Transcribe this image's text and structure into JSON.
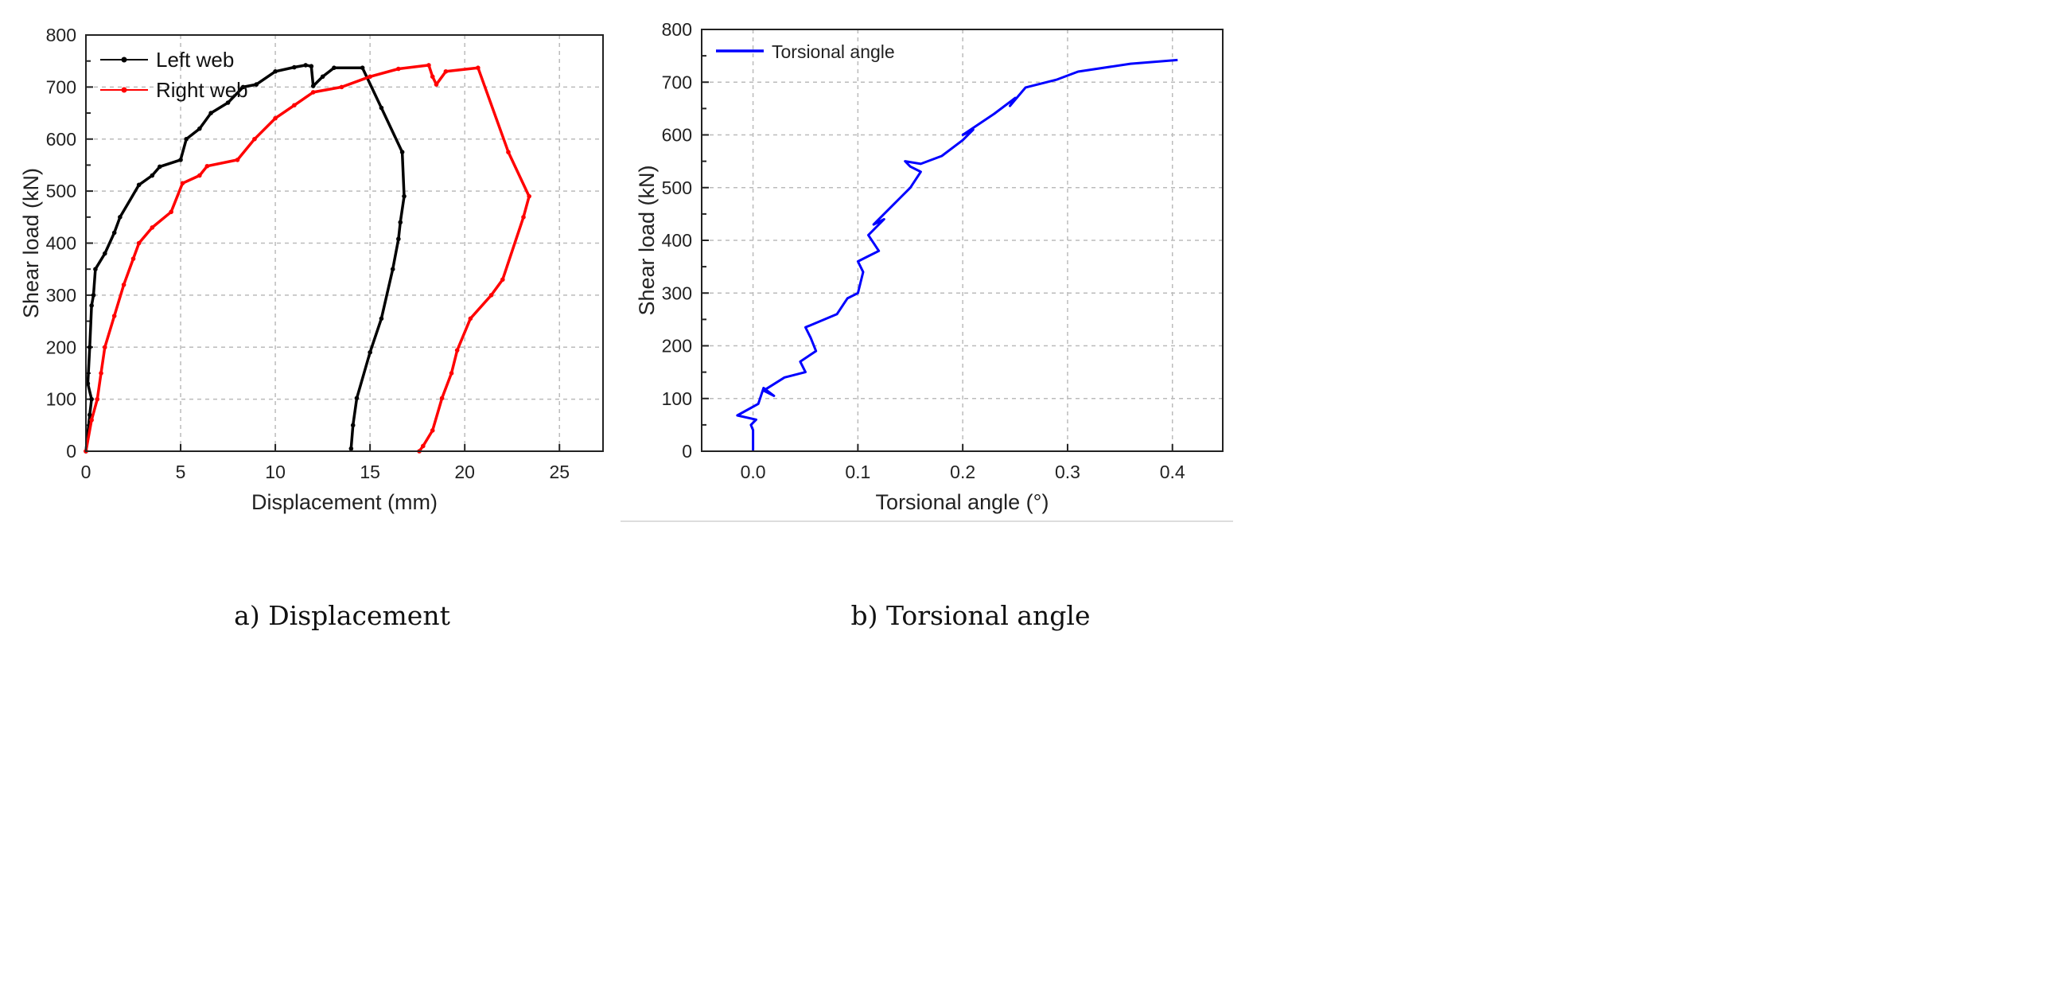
{
  "chart_data": [
    {
      "type": "line",
      "caption": "a) Displacement",
      "xlabel": "Displacement (mm)",
      "ylabel": "Shear load (kN)",
      "xlim": [
        0,
        27.3
      ],
      "ylim": [
        0,
        800
      ],
      "xticks": [
        "0",
        "5",
        "10",
        "15",
        "20",
        "25"
      ],
      "yticks": [
        "0",
        "100",
        "200",
        "300",
        "400",
        "500",
        "600",
        "700",
        "800"
      ],
      "grid": true,
      "legend_position": "top-left",
      "series": [
        {
          "name": "Left web",
          "color": "#000000",
          "x": [
            0,
            0.2,
            0.3,
            0.1,
            0.2,
            0.3,
            0.4,
            0.5,
            1,
            1.5,
            1.8,
            2.8,
            3.5,
            3.9,
            5,
            5.3,
            6,
            6.6,
            7.5,
            8.3,
            9,
            10,
            11,
            11.6,
            11.9,
            12,
            12.5,
            13.1,
            14.6,
            15.6,
            16.7,
            16.8,
            16.6,
            16.5,
            16.2,
            15.6,
            15,
            14.3,
            14.1,
            14
          ],
          "y": [
            0,
            70,
            100,
            130,
            200,
            280,
            300,
            350,
            380,
            420,
            450,
            512,
            530,
            547,
            560,
            600,
            620,
            650,
            670,
            700,
            705,
            730,
            738,
            742,
            740,
            702,
            720,
            737,
            737,
            660,
            575,
            490,
            440,
            408,
            350,
            255,
            190,
            102,
            50,
            5
          ]
        },
        {
          "name": "Right web",
          "color": "#ff0000",
          "x": [
            0,
            0.3,
            0.6,
            0.8,
            1,
            1.5,
            2,
            2.5,
            2.8,
            3.5,
            4.5,
            5.1,
            6,
            6.4,
            8,
            8.9,
            10,
            11,
            12,
            13.5,
            15,
            16.5,
            18.1,
            18.3,
            18.5,
            19,
            20.7,
            22.3,
            23.4,
            23.1,
            22,
            21.4,
            20.3,
            19.6,
            19.3,
            18.8,
            18.3,
            17.8,
            17.6
          ],
          "y": [
            0,
            60,
            100,
            150,
            200,
            260,
            320,
            370,
            400,
            430,
            460,
            515,
            530,
            548,
            560,
            600,
            640,
            665,
            690,
            700,
            720,
            735,
            742,
            720,
            705,
            730,
            737,
            575,
            490,
            450,
            330,
            300,
            255,
            194,
            150,
            102,
            40,
            10,
            0
          ]
        }
      ]
    },
    {
      "type": "line",
      "caption": "b) Torsional angle",
      "xlabel": "Torsional angle (°)",
      "ylabel": "Shear load (kN)",
      "xlim": [
        -0.049,
        0.448
      ],
      "ylim": [
        0,
        800
      ],
      "xticks": [
        "0.0",
        "0.1",
        "0.2",
        "0.3",
        "0.4"
      ],
      "yticks": [
        "0",
        "100",
        "200",
        "300",
        "400",
        "500",
        "600",
        "700",
        "800"
      ],
      "grid": true,
      "legend_position": "top-left",
      "series": [
        {
          "name": "Torsional angle",
          "color": "#0000ff",
          "x": [
            0,
            0,
            -0.002,
            0.003,
            -0.015,
            0.005,
            0.01,
            0.02,
            0.01,
            0.03,
            0.05,
            0.045,
            0.06,
            0.055,
            0.05,
            0.08,
            0.09,
            0.1,
            0.105,
            0.1,
            0.11,
            0.12,
            0.11,
            0.125,
            0.115,
            0.14,
            0.15,
            0.16,
            0.15,
            0.145,
            0.16,
            0.18,
            0.2,
            0.21,
            0.2,
            0.23,
            0.25,
            0.245,
            0.26,
            0.29,
            0.31,
            0.36,
            0.405
          ],
          "y": [
            0,
            40,
            50,
            60,
            68,
            90,
            120,
            105,
            115,
            140,
            150,
            170,
            190,
            215,
            235,
            260,
            290,
            300,
            340,
            360,
            370,
            380,
            410,
            440,
            430,
            480,
            500,
            530,
            540,
            550,
            545,
            560,
            590,
            610,
            600,
            640,
            670,
            655,
            690,
            705,
            720,
            735,
            742
          ]
        }
      ]
    }
  ]
}
